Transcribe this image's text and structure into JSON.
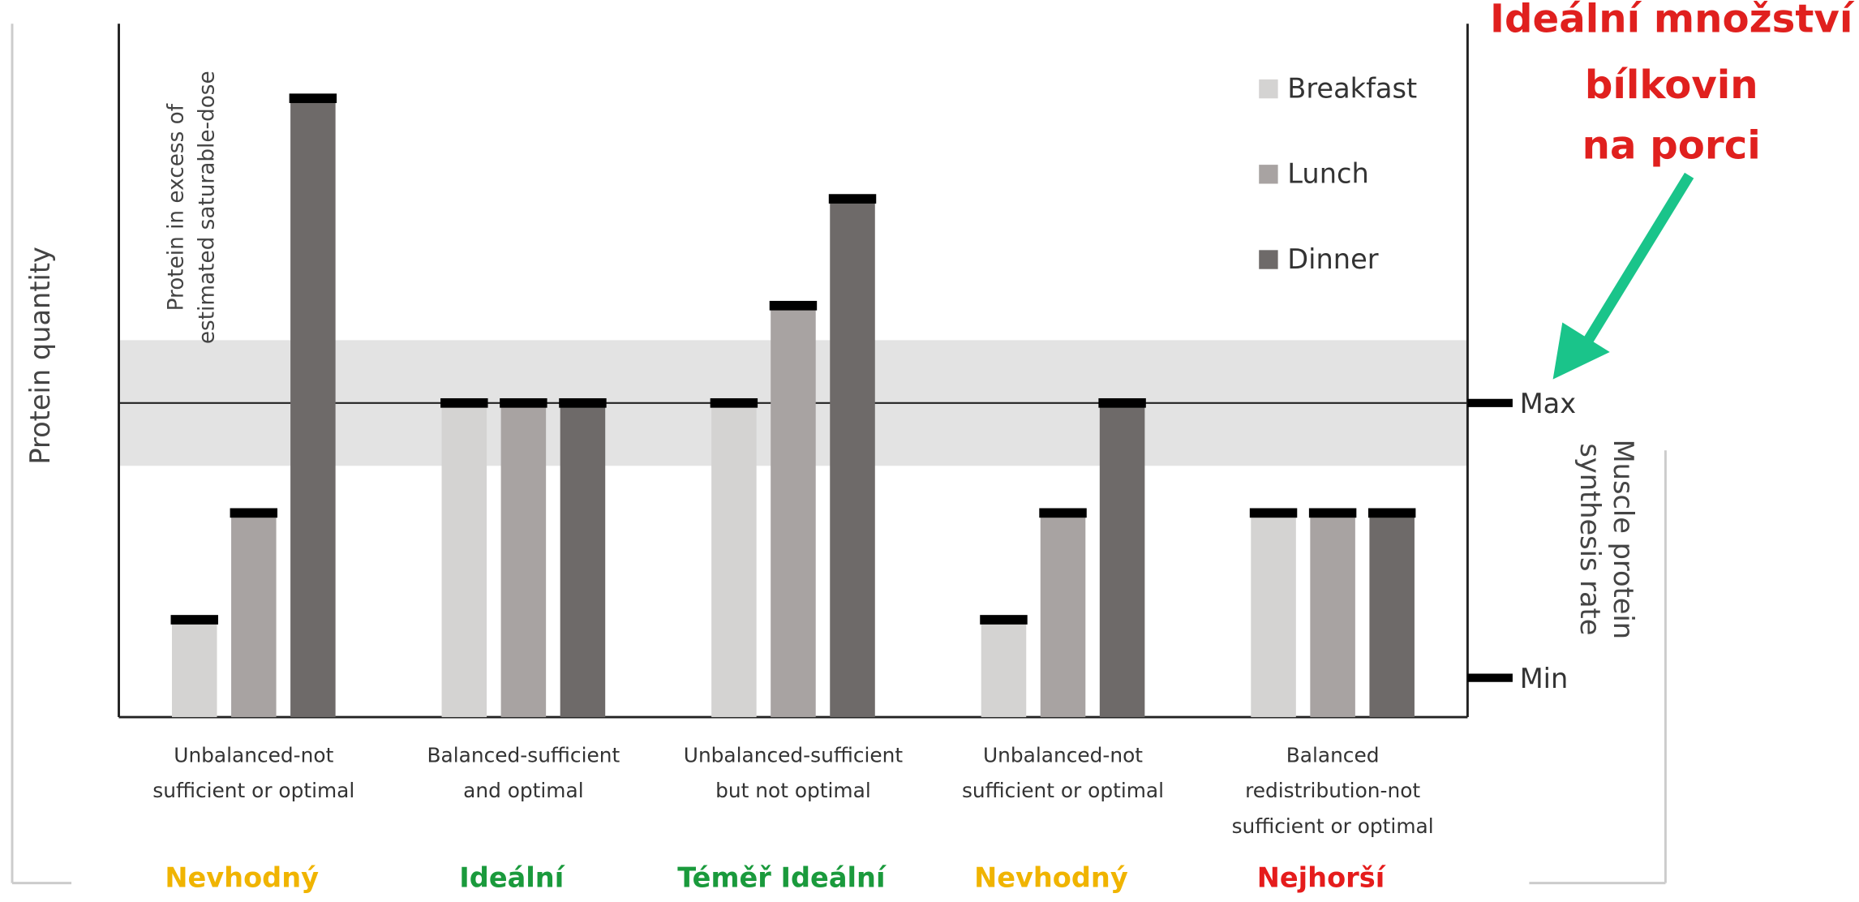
{
  "chart_data": {
    "type": "bar",
    "callout": [
      "Ideální množství",
      "bílkovin",
      "na porci"
    ],
    "annotation": [
      "Protein in excess of",
      "estimated saturable-dose"
    ],
    "y_label": "Protein quantity",
    "y2_label": [
      "Muscle protein",
      "synthesis rate"
    ],
    "categories": [
      [
        "Unbalanced-not",
        "sufficient or optimal"
      ],
      [
        "Balanced-sufficient",
        "and optimal"
      ],
      [
        "Unbalanced-sufficient",
        "but not optimal"
      ],
      [
        "Unbalanced-not",
        "sufficient or optimal"
      ],
      [
        "Balanced",
        "redistribution-not",
        "sufficient or optimal"
      ]
    ],
    "ratings": [
      "Nevhodný",
      "Ideální",
      "Téměř Ideální",
      "Nevhodný",
      "Nejhorší"
    ],
    "rating_colors": [
      "#f0b400",
      "#1a9a3c",
      "#1a9a3c",
      "#f0b400",
      "#e51c1c"
    ],
    "series": [
      {
        "name": "Breakfast",
        "color": "#d4d3d2",
        "values": [
          31,
          100,
          100,
          31,
          65
        ]
      },
      {
        "name": "Lunch",
        "color": "#a8a3a2",
        "values": [
          65,
          100,
          131,
          65,
          65
        ]
      },
      {
        "name": "Dinner",
        "color": "#6e6a69",
        "values": [
          197,
          100,
          165,
          100,
          65
        ]
      }
    ],
    "band": [
      80,
      120
    ],
    "ylim": [
      0,
      220
    ],
    "y2ticks": [
      {
        "value": 12.5,
        "label": "Min"
      },
      {
        "value": 100,
        "label": "Max"
      }
    ]
  }
}
